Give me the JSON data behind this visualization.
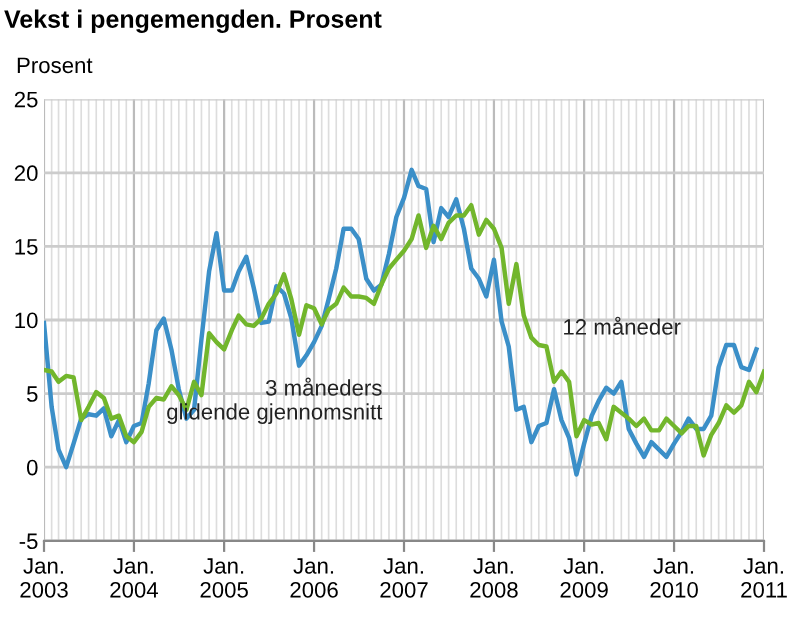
{
  "chart_data": {
    "type": "line",
    "title": "Vekst i pengemengden. Prosent",
    "ylabel": "Prosent",
    "x": [
      "2003-01",
      "2003-02",
      "2003-03",
      "2003-04",
      "2003-05",
      "2003-06",
      "2003-07",
      "2003-08",
      "2003-09",
      "2003-10",
      "2003-11",
      "2003-12",
      "2004-01",
      "2004-02",
      "2004-03",
      "2004-04",
      "2004-05",
      "2004-06",
      "2004-07",
      "2004-08",
      "2004-09",
      "2004-10",
      "2004-11",
      "2004-12",
      "2005-01",
      "2005-02",
      "2005-03",
      "2005-04",
      "2005-05",
      "2005-06",
      "2005-07",
      "2005-08",
      "2005-09",
      "2005-10",
      "2005-11",
      "2005-12",
      "2006-01",
      "2006-02",
      "2006-03",
      "2006-04",
      "2006-05",
      "2006-06",
      "2006-07",
      "2006-08",
      "2006-09",
      "2006-10",
      "2006-11",
      "2006-12",
      "2007-01",
      "2007-02",
      "2007-03",
      "2007-04",
      "2007-05",
      "2007-06",
      "2007-07",
      "2007-08",
      "2007-09",
      "2007-10",
      "2007-11",
      "2007-12",
      "2008-01",
      "2008-02",
      "2008-03",
      "2008-04",
      "2008-05",
      "2008-06",
      "2008-07",
      "2008-08",
      "2008-09",
      "2008-10",
      "2008-11",
      "2008-12",
      "2009-01",
      "2009-02",
      "2009-03",
      "2009-04",
      "2009-05",
      "2009-06",
      "2009-07",
      "2009-08",
      "2009-09",
      "2009-10",
      "2009-11",
      "2009-12",
      "2010-01",
      "2010-02",
      "2010-03",
      "2010-04",
      "2010-05",
      "2010-06",
      "2010-07",
      "2010-08",
      "2010-09",
      "2010-10",
      "2010-11",
      "2010-12"
    ],
    "series": [
      {
        "name": "3 måneders\nglidende gjennomsnitt",
        "color": "#3b8fc8",
        "values": [
          9.8,
          4.1,
          1.2,
          0,
          1.6,
          3.3,
          3.6,
          3.5,
          4.0,
          2.1,
          3.2,
          1.7,
          2.8,
          3.0,
          5.7,
          9.3,
          10.1,
          8.0,
          5.3,
          3.3,
          3.9,
          8.7,
          13.3,
          15.9,
          12.0,
          12.0,
          13.3,
          14.3,
          12.2,
          9.8,
          9.9,
          12.3,
          11.8,
          10.1,
          6.9,
          7.6,
          8.5,
          9.6,
          11.4,
          13.5,
          16.2,
          16.2,
          15.5,
          12.8,
          12.0,
          12.4,
          14.5,
          17.0,
          18.3,
          20.2,
          19.1,
          18.9,
          15.3,
          17.6,
          17.0,
          18.2,
          16.2,
          13.5,
          12.8,
          11.6,
          14.1,
          9.9,
          8.2,
          3.9,
          4.1,
          1.7,
          2.8,
          3.0,
          5.3,
          3.2,
          2.0,
          -0.5,
          1.6,
          3.5,
          4.5,
          5.4,
          5.0,
          5.8,
          2.6,
          1.6,
          0.7,
          1.7,
          1.2,
          0.7,
          1.6,
          2.4,
          3.3,
          2.6,
          2.6,
          3.5,
          6.8,
          8.3,
          8.3,
          6.8,
          6.6,
          8.0
        ]
      },
      {
        "name": "12 måneder",
        "color": "#72b62c",
        "x": [
          "2003-01",
          "2003-02",
          "2003-03",
          "2003-04",
          "2003-05",
          "2003-06",
          "2003-07",
          "2003-08",
          "2003-09",
          "2003-10",
          "2003-11",
          "2003-12",
          "2004-01",
          "2004-02",
          "2004-03",
          "2004-04",
          "2004-05",
          "2004-06",
          "2004-07",
          "2004-08",
          "2004-09",
          "2004-10",
          "2004-11",
          "2004-12",
          "2005-01",
          "2005-02",
          "2005-03",
          "2005-04",
          "2005-05",
          "2005-06",
          "2005-07",
          "2005-08",
          "2005-09",
          "2005-10",
          "2005-11",
          "2005-12",
          "2006-01",
          "2006-02",
          "2006-03",
          "2006-04",
          "2006-05",
          "2006-06",
          "2006-07",
          "2006-08",
          "2006-09",
          "2006-10",
          "2006-11",
          "2006-12",
          "2007-01",
          "2007-02",
          "2007-03",
          "2007-04",
          "2007-05",
          "2007-06",
          "2007-07",
          "2007-08",
          "2007-09",
          "2007-10",
          "2007-11",
          "2007-12",
          "2008-01",
          "2008-02",
          "2008-03",
          "2008-04",
          "2008-05",
          "2008-06",
          "2008-07",
          "2008-08",
          "2008-09",
          "2008-10",
          "2008-11",
          "2008-12",
          "2009-01",
          "2009-02",
          "2009-03",
          "2009-04",
          "2009-05",
          "2009-06",
          "2009-07",
          "2009-08",
          "2009-09",
          "2009-10",
          "2009-11",
          "2009-12",
          "2010-01",
          "2010-02",
          "2010-03",
          "2010-04",
          "2010-05",
          "2010-06",
          "2010-07",
          "2010-08",
          "2010-09",
          "2010-10",
          "2010-11",
          "2010-12",
          "2011-01"
        ],
        "values": [
          6.6,
          6.5,
          5.8,
          6.2,
          6.1,
          3.2,
          4.1,
          5.1,
          4.7,
          3.3,
          3.5,
          2.1,
          1.7,
          2.4,
          4.1,
          4.7,
          4.6,
          5.5,
          4.9,
          3.9,
          5.8,
          4.9,
          9.1,
          8.5,
          8.0,
          9.3,
          10.3,
          9.7,
          9.6,
          10.1,
          11.1,
          11.8,
          13.1,
          11.4,
          9.0,
          11.0,
          10.8,
          9.7,
          10.7,
          11.1,
          12.2,
          11.6,
          11.6,
          11.5,
          11.1,
          12.4,
          13.5,
          14.1,
          14.7,
          15.5,
          17.1,
          14.9,
          16.4,
          15.5,
          16.6,
          17.1,
          17.1,
          17.8,
          15.8,
          16.8,
          16.2,
          14.9,
          11.1,
          13.8,
          10.3,
          8.8,
          8.3,
          8.2,
          5.8,
          6.5,
          5.8,
          2.1,
          3.2,
          2.9,
          3.0,
          1.9,
          4.1,
          3.7,
          3.3,
          2.8,
          3.3,
          2.5,
          2.5,
          3.3,
          2.8,
          2.3,
          2.8,
          2.8,
          0.8,
          2.2,
          3.0,
          4.2,
          3.7,
          4.2,
          5.8,
          5.1,
          6.5
        ]
      }
    ],
    "xlim": [
      "2003-01",
      "2011-01"
    ],
    "xticks": [
      {
        "value": "2003-01",
        "label": "Jan.\n2003"
      },
      {
        "value": "2004-01",
        "label": "Jan.\n2004"
      },
      {
        "value": "2005-01",
        "label": "Jan.\n2005"
      },
      {
        "value": "2006-01",
        "label": "Jan.\n2006"
      },
      {
        "value": "2007-01",
        "label": "Jan.\n2007"
      },
      {
        "value": "2008-01",
        "label": "Jan.\n2008"
      },
      {
        "value": "2009-01",
        "label": "Jan.\n2009"
      },
      {
        "value": "2010-01",
        "label": "Jan.\n2010"
      },
      {
        "value": "2011-01",
        "label": "Jan.\n2011"
      }
    ],
    "ylim": [
      -5,
      25
    ],
    "yticks": [
      -5,
      0,
      5,
      10,
      15,
      20,
      25
    ],
    "grid": true,
    "legend": false,
    "marker": "none",
    "line_style": "solid"
  }
}
